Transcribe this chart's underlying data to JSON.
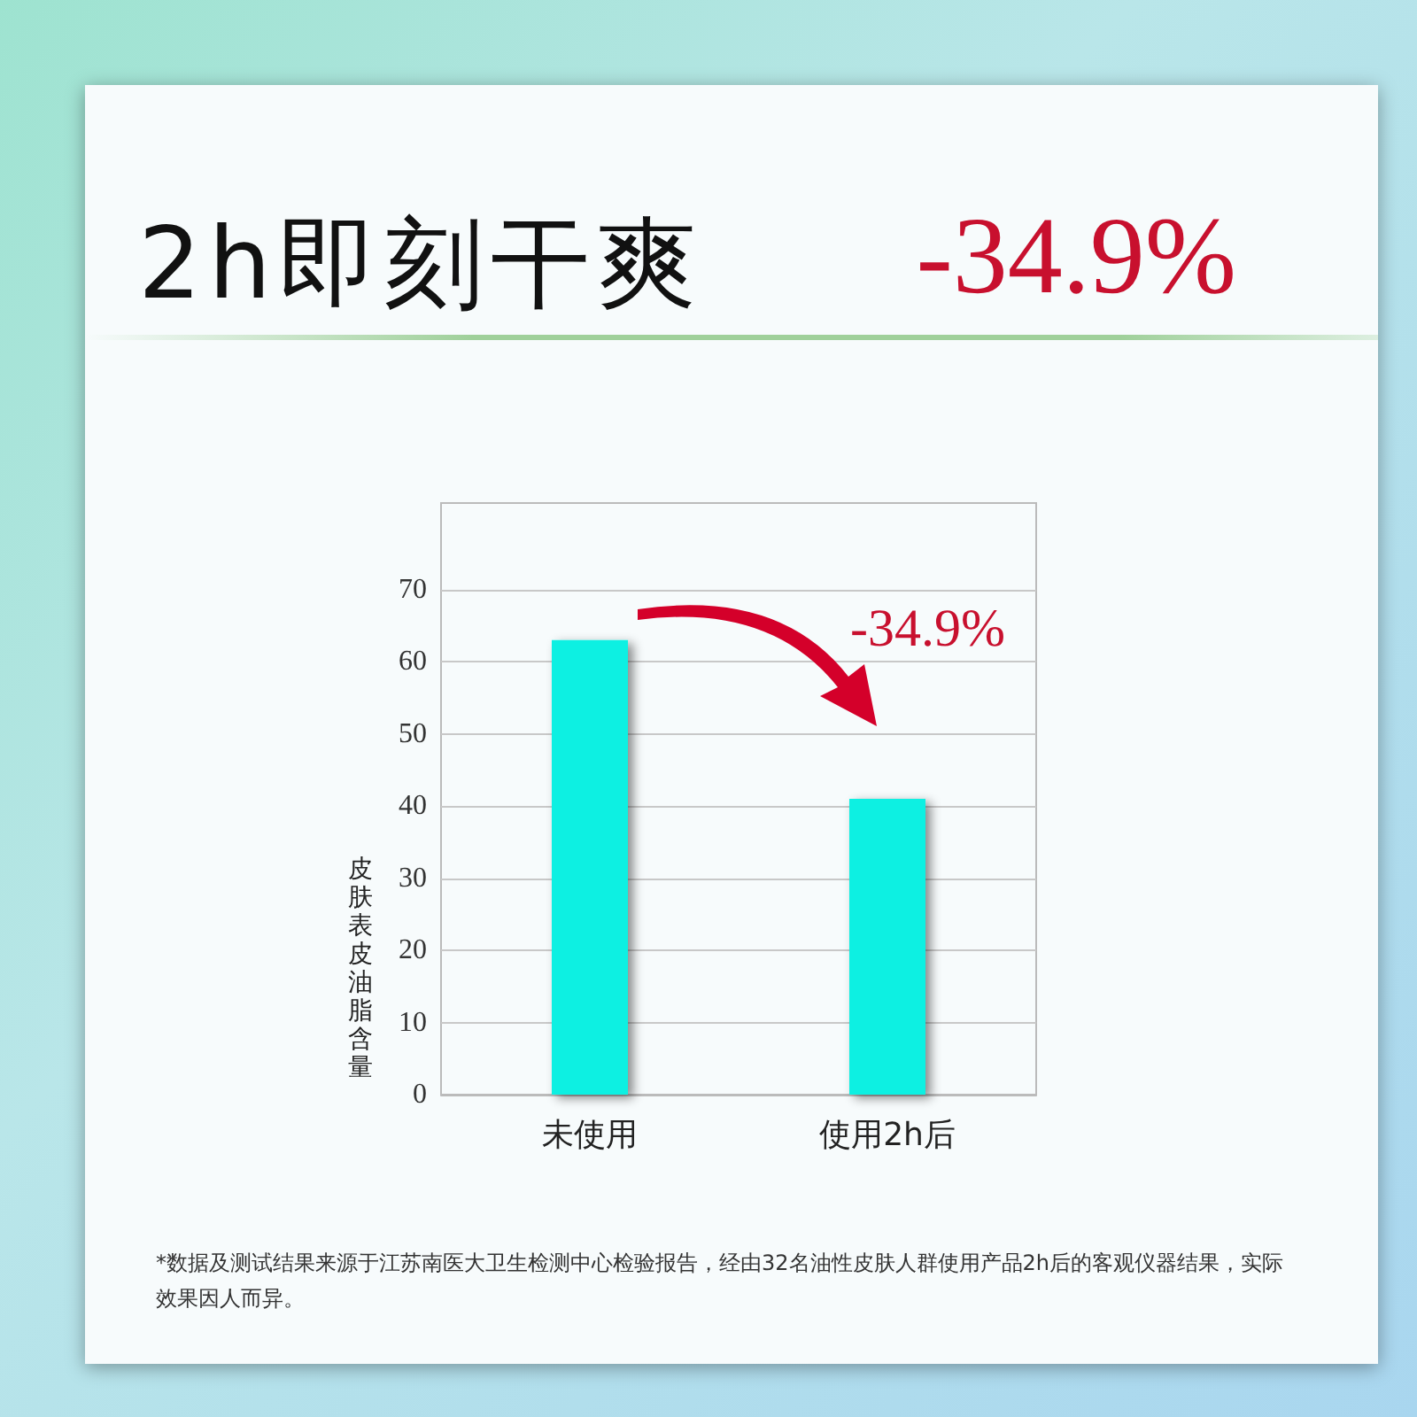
{
  "chart_data": {
    "type": "bar",
    "title": "2h即刻干爽",
    "ylabel": "皮肤表皮油脂含量",
    "categories": [
      "未使用",
      "使用2h后"
    ],
    "values": [
      63,
      41
    ],
    "color": "#0bf0e2",
    "ylim": [
      0,
      82
    ],
    "yticks": [
      0,
      10,
      20,
      30,
      40,
      50,
      60,
      70
    ],
    "grid": "y",
    "annotations": [
      "-34.9%",
      "-34.9%",
      "*数据及测试结果来源于江苏南医大卫生检测中心检验报告，经由32名油性皮肤人群使用产品2h后的客观仪器结果，实际效果因人而异。"
    ]
  }
}
